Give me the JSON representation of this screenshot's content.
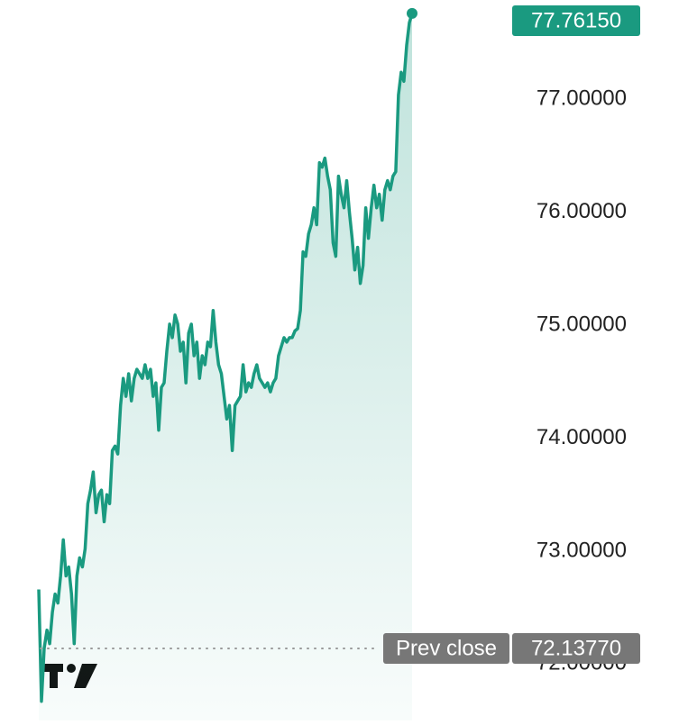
{
  "chart_data": {
    "type": "area",
    "values": [
      72.66,
      71.67,
      72.14,
      72.3,
      72.18,
      72.46,
      72.62,
      72.54,
      72.78,
      73.1,
      72.78,
      72.86,
      72.62,
      72.18,
      72.78,
      72.94,
      72.86,
      73.02,
      73.42,
      73.54,
      73.7,
      73.34,
      73.5,
      73.54,
      73.26,
      73.5,
      73.42,
      73.89,
      73.93,
      73.86,
      74.29,
      74.53,
      74.37,
      74.57,
      74.33,
      74.53,
      74.61,
      74.57,
      74.53,
      74.65,
      74.53,
      74.61,
      74.37,
      74.49,
      74.07,
      74.45,
      74.49,
      74.77,
      75.01,
      74.89,
      75.09,
      75.01,
      74.77,
      74.85,
      74.49,
      74.93,
      75.01,
      74.73,
      74.85,
      74.53,
      74.73,
      74.65,
      74.85,
      74.81,
      75.13,
      74.85,
      74.65,
      74.57,
      74.37,
      74.17,
      74.29,
      73.89,
      74.29,
      74.33,
      74.37,
      74.65,
      74.41,
      74.49,
      74.45,
      74.57,
      74.65,
      74.53,
      74.49,
      74.45,
      74.49,
      74.41,
      74.49,
      74.53,
      74.73,
      74.81,
      74.89,
      74.85,
      74.89,
      74.89,
      74.95,
      74.97,
      75.13,
      75.65,
      75.61,
      75.81,
      75.89,
      76.04,
      75.89,
      76.44,
      76.4,
      76.48,
      76.32,
      76.2,
      75.73,
      75.61,
      76.32,
      76.16,
      76.04,
      76.28,
      76.0,
      75.77,
      75.49,
      75.69,
      75.37,
      75.53,
      76.04,
      75.77,
      76.04,
      76.24,
      76.04,
      76.16,
      75.93,
      76.2,
      76.28,
      76.2,
      76.32,
      76.36,
      77.04,
      77.24,
      77.16,
      77.48,
      77.68,
      77.7615
    ],
    "color": "#1a9a80",
    "last_label": "77.76150",
    "reference_line": {
      "label": "Prev close",
      "value": 72.1377,
      "value_label": "72.13770"
    },
    "ylim": [
      71.5,
      77.88
    ],
    "yticks": [
      {
        "value": 72,
        "label": "72.00000"
      },
      {
        "value": 73,
        "label": "73.00000"
      },
      {
        "value": 74,
        "label": "74.00000"
      },
      {
        "value": 75,
        "label": "75.00000"
      },
      {
        "value": 76,
        "label": "76.00000"
      },
      {
        "value": 77,
        "label": "77.00000"
      }
    ]
  }
}
